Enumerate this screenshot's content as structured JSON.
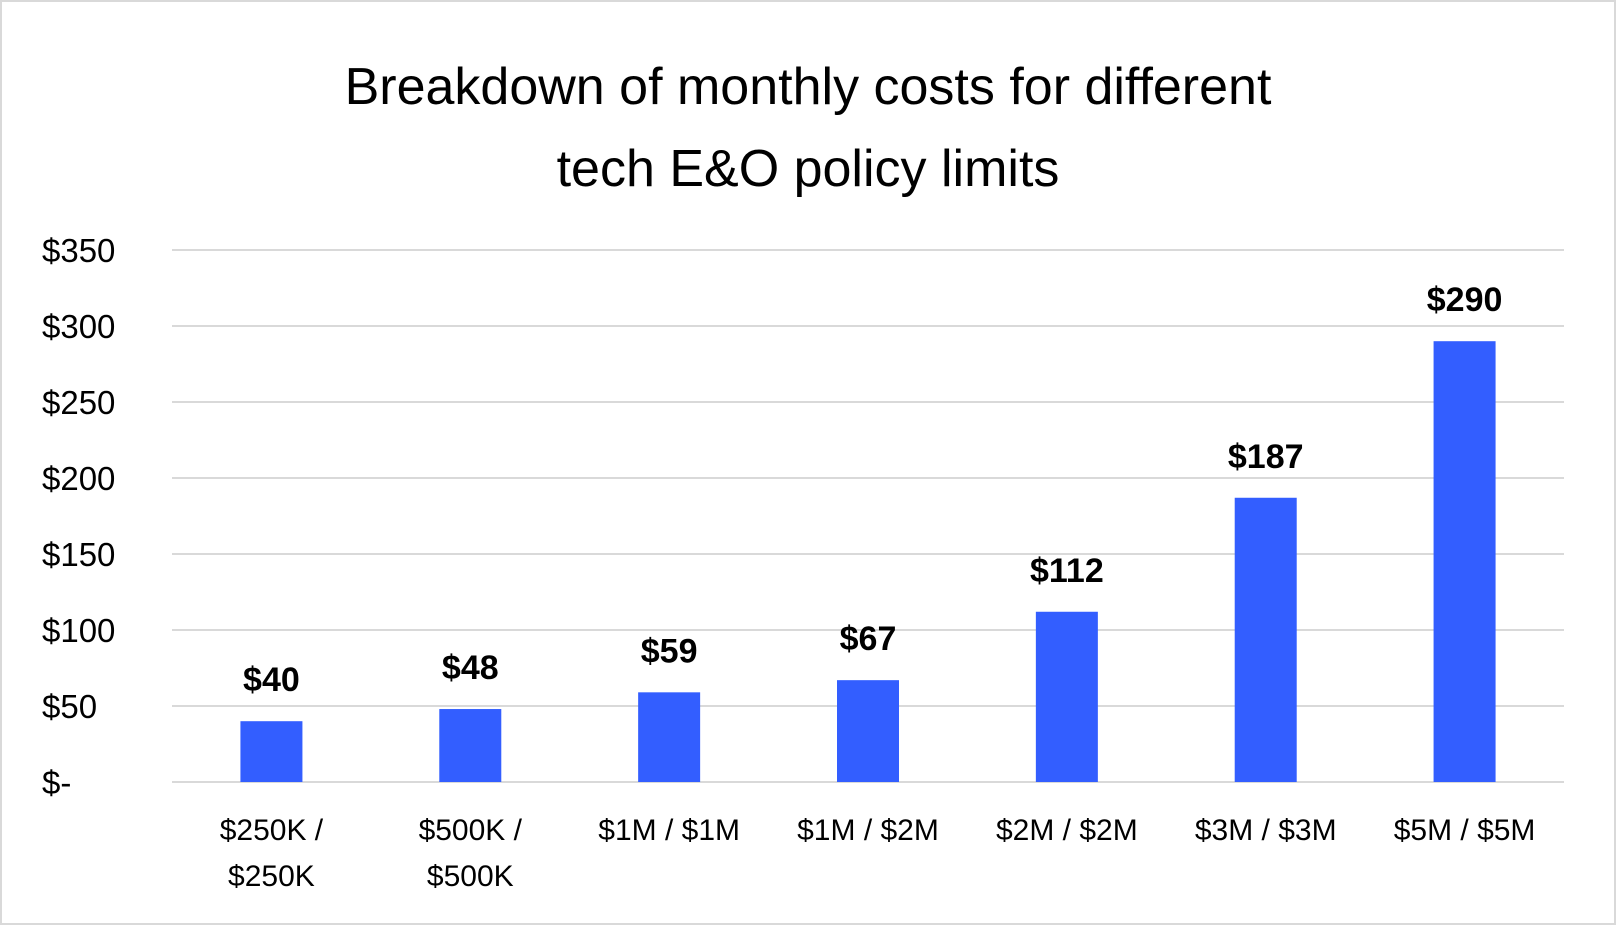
{
  "chart_data": {
    "type": "bar",
    "title": "Breakdown of monthly costs for different\ntech E&O policy limits",
    "xlabel": "",
    "ylabel": "",
    "categories": [
      [
        "$250K /",
        "$250K"
      ],
      [
        "$500K /",
        "$500K"
      ],
      [
        "$1M / $1M"
      ],
      [
        "$1M / $2M"
      ],
      [
        "$2M / $2M"
      ],
      [
        "$3M / $3M"
      ],
      [
        "$5M / $5M"
      ]
    ],
    "values": [
      40,
      48,
      59,
      67,
      112,
      187,
      290
    ],
    "data_labels": [
      "$40",
      "$48",
      "$59",
      "$67",
      "$112",
      "$187",
      "$290"
    ],
    "ylim": [
      0,
      350
    ],
    "yticks": [
      0,
      50,
      100,
      150,
      200,
      250,
      300,
      350
    ],
    "ytick_labels": [
      "$-",
      "$50",
      "$100",
      "$150",
      "$200",
      "$250",
      "$300",
      "$350"
    ],
    "grid": true,
    "legend": "none",
    "colors": {
      "bar": "#335eff",
      "grid": "#d9d9d9",
      "border": "#d9d9d9"
    }
  }
}
